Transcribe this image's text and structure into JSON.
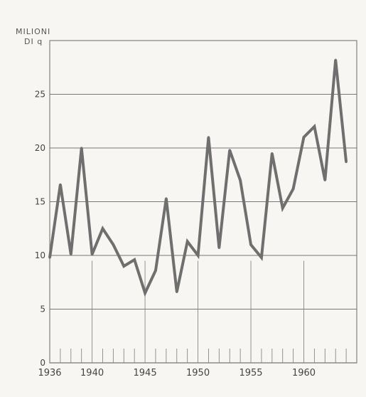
{
  "chart_data": {
    "type": "line",
    "ylabel_line1": "MILIONI",
    "ylabel_line2": "DI q",
    "xlim": [
      1936,
      1965
    ],
    "ylim": [
      0,
      30
    ],
    "yticks": [
      0,
      5,
      10,
      15,
      20,
      25
    ],
    "xticks": [
      1936,
      1940,
      1945,
      1950,
      1955,
      1960
    ],
    "grid": true,
    "series": [
      {
        "x": [
          1936,
          1937,
          1938,
          1939,
          1940,
          1941,
          1942,
          1943,
          1944,
          1945,
          1946,
          1947,
          1948,
          1949,
          1950,
          1951,
          1952,
          1953,
          1954,
          1955,
          1956,
          1957,
          1958,
          1959,
          1960,
          1961,
          1962,
          1963,
          1964
        ],
        "values": [
          9.8,
          16.6,
          10.1,
          20.0,
          10.1,
          12.5,
          11.0,
          9.0,
          9.6,
          6.5,
          8.6,
          15.3,
          6.6,
          11.3,
          10.0,
          21.0,
          10.7,
          19.8,
          17.0,
          11.0,
          9.8,
          19.5,
          14.4,
          16.2,
          21.0,
          22.0,
          17.0,
          28.2,
          18.7
        ]
      }
    ]
  }
}
